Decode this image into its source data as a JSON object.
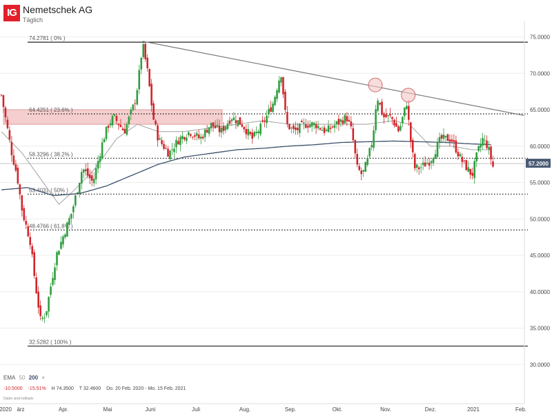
{
  "header": {
    "logo": "IG",
    "title": "Nemetschek AG",
    "subtitle": "Täglich"
  },
  "colors": {
    "up": "#2e9e3e",
    "down": "#d0252b",
    "ema50": "#a9a9a9",
    "ema200": "#3b4f6b",
    "fib_zone": "#f3c7c7",
    "trendline": "#777777",
    "current": "#4a5a74"
  },
  "legend": {
    "indicator": "EMA",
    "p1": "50",
    "p2": "200",
    "close_icon": "×"
  },
  "stats": {
    "change": "-10.5000",
    "change_pct": "-15.51%",
    "high": "H 74.3500",
    "low": "T 32.4600",
    "range": "Do. 20 Feb. 2020 - Mo. 15 Feb. 2021"
  },
  "disclaimer": "Daten sind indikativ",
  "chart_data": {
    "type": "candlestick",
    "title": "Nemetschek AG",
    "price_axis": {
      "ticks": [
        "75.0000",
        "70.0000",
        "65.0000",
        "60.0000",
        "55.0000",
        "50.0000",
        "45.0000",
        "40.0000",
        "35.0000",
        "30.0000"
      ],
      "range": [
        30,
        76
      ]
    },
    "time_axis": {
      "labels": [
        "2020",
        "ärz",
        "Apr.",
        "Mai",
        "Juni",
        "Juli",
        "Aug.",
        "Sep.",
        "Okt.",
        "Nov.",
        "Dez.",
        "2021",
        "Feb."
      ]
    },
    "current_price": "57.2000",
    "fibonacci": [
      {
        "label": "74.2781 ( 0% )",
        "value": 74.2781,
        "style": "solid"
      },
      {
        "label": "64.4251 ( 23.6% )",
        "value": 64.4251,
        "style": "dotted"
      },
      {
        "label": "58.3296 ( 38.2% )",
        "value": 58.3296,
        "style": "dotted"
      },
      {
        "label": "53.4031 ( 50% )",
        "value": 53.4031,
        "style": "dotted"
      },
      {
        "label": "48.4766 ( 61.8% )",
        "value": 48.4766,
        "style": "dotted"
      },
      {
        "label": "32.5282 ( 100% )",
        "value": 32.5282,
        "style": "solid"
      }
    ],
    "resistance_zone": [
      63.0,
      65.0
    ],
    "current_line": 57.6,
    "trendline": [
      [
        0.27,
        74.4
      ],
      [
        1.0,
        64.2
      ]
    ],
    "highlight_circles": [
      [
        0.715,
        68.4
      ],
      [
        0.778,
        67.0
      ]
    ],
    "close_path": [
      [
        0,
        67
      ],
      [
        0.01,
        63
      ],
      [
        0.02,
        59
      ],
      [
        0.03,
        56
      ],
      [
        0.04,
        51
      ],
      [
        0.055,
        47
      ],
      [
        0.065,
        41
      ],
      [
        0.075,
        36
      ],
      [
        0.085,
        37
      ],
      [
        0.095,
        41
      ],
      [
        0.105,
        45
      ],
      [
        0.115,
        47
      ],
      [
        0.125,
        49
      ],
      [
        0.135,
        51
      ],
      [
        0.145,
        54
      ],
      [
        0.155,
        57
      ],
      [
        0.165,
        56
      ],
      [
        0.175,
        55
      ],
      [
        0.185,
        58
      ],
      [
        0.195,
        61
      ],
      [
        0.205,
        63
      ],
      [
        0.215,
        64
      ],
      [
        0.225,
        63
      ],
      [
        0.235,
        62
      ],
      [
        0.245,
        64
      ],
      [
        0.255,
        66
      ],
      [
        0.262,
        69
      ],
      [
        0.27,
        74
      ],
      [
        0.28,
        70
      ],
      [
        0.29,
        64
      ],
      [
        0.3,
        61
      ],
      [
        0.31,
        60
      ],
      [
        0.32,
        59
      ],
      [
        0.34,
        61
      ],
      [
        0.36,
        62
      ],
      [
        0.38,
        61
      ],
      [
        0.4,
        63
      ],
      [
        0.42,
        62
      ],
      [
        0.44,
        64
      ],
      [
        0.46,
        63
      ],
      [
        0.48,
        61
      ],
      [
        0.5,
        63
      ],
      [
        0.52,
        66
      ],
      [
        0.53,
        69
      ],
      [
        0.535,
        70
      ],
      [
        0.545,
        63
      ],
      [
        0.56,
        62
      ],
      [
        0.58,
        63
      ],
      [
        0.6,
        63
      ],
      [
        0.62,
        62
      ],
      [
        0.64,
        63
      ],
      [
        0.66,
        64
      ],
      [
        0.67,
        62
      ],
      [
        0.68,
        57
      ],
      [
        0.69,
        56
      ],
      [
        0.7,
        58
      ],
      [
        0.71,
        61
      ],
      [
        0.718,
        67
      ],
      [
        0.73,
        64
      ],
      [
        0.745,
        64
      ],
      [
        0.76,
        62
      ],
      [
        0.775,
        66
      ],
      [
        0.782,
        61
      ],
      [
        0.79,
        57
      ],
      [
        0.8,
        57
      ],
      [
        0.82,
        58
      ],
      [
        0.84,
        61
      ],
      [
        0.86,
        61
      ],
      [
        0.88,
        58
      ],
      [
        0.9,
        56
      ],
      [
        0.91,
        59
      ],
      [
        0.92,
        61
      ],
      [
        0.93,
        60
      ],
      [
        0.94,
        57.2
      ]
    ],
    "ema50_path": [
      [
        0,
        62
      ],
      [
        0.04,
        59
      ],
      [
        0.08,
        55
      ],
      [
        0.11,
        52
      ],
      [
        0.14,
        54
      ],
      [
        0.18,
        57
      ],
      [
        0.22,
        61
      ],
      [
        0.26,
        63
      ],
      [
        0.3,
        62
      ],
      [
        0.35,
        62
      ],
      [
        0.4,
        62.5
      ],
      [
        0.45,
        63
      ],
      [
        0.5,
        63.5
      ],
      [
        0.55,
        63
      ],
      [
        0.6,
        63
      ],
      [
        0.65,
        63
      ],
      [
        0.7,
        63
      ],
      [
        0.75,
        63.5
      ],
      [
        0.78,
        63
      ],
      [
        0.82,
        60
      ],
      [
        0.86,
        60
      ],
      [
        0.9,
        59.5
      ],
      [
        0.94,
        59.5
      ]
    ],
    "ema200_path": [
      [
        0,
        54
      ],
      [
        0.05,
        54.3
      ],
      [
        0.1,
        53.2
      ],
      [
        0.15,
        53.5
      ],
      [
        0.2,
        54.5
      ],
      [
        0.25,
        56
      ],
      [
        0.3,
        57.5
      ],
      [
        0.35,
        58.5
      ],
      [
        0.4,
        59
      ],
      [
        0.45,
        59.5
      ],
      [
        0.5,
        59.7
      ],
      [
        0.55,
        60
      ],
      [
        0.6,
        60.2
      ],
      [
        0.65,
        60.5
      ],
      [
        0.7,
        60.6
      ],
      [
        0.75,
        60.7
      ],
      [
        0.8,
        60.6
      ],
      [
        0.85,
        60.5
      ],
      [
        0.9,
        60.3
      ],
      [
        0.94,
        60.2
      ]
    ]
  }
}
